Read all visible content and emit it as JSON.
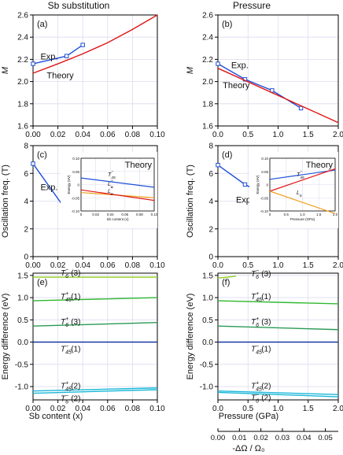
{
  "col_titles": [
    "Sb substitution",
    "Pressure"
  ],
  "colors": {
    "exp": "#1f4fd6",
    "theory": "#e01515",
    "grid": "#dcdcf0",
    "ltgreen": "#8ecf1e",
    "green": "#2fb82f",
    "dkgreen": "#2a9a55",
    "navy": "#0a2a9e",
    "cyan": "#1ab7d8",
    "orange": "#f0a020"
  },
  "x_ticks": {
    "sb": [
      "0.00",
      "0.02",
      "0.04",
      "0.06",
      "0.08",
      "0.10"
    ],
    "p": [
      "0.0",
      "0.5",
      "1.0",
      "1.5",
      "2.0"
    ],
    "omega": [
      "0.00",
      "0.01",
      "0.02",
      "0.03",
      "0.04",
      "0.05"
    ]
  },
  "x_labels": {
    "sb": "Sb content (x)",
    "p": "Pressure (GPa)",
    "omega": "-ΔΩ / Ω₀"
  },
  "chart_data": [
    {
      "panel": "(a)",
      "type": "line",
      "xlim": [
        0,
        0.1
      ],
      "ylim": [
        1.6,
        2.6
      ],
      "yticks": [
        "1.6",
        "1.8",
        "2.0",
        "2.2",
        "2.4",
        "2.6"
      ],
      "ylabel": "M",
      "series": [
        {
          "name": "Exp.",
          "markers": true,
          "x": [
            0,
            0.027,
            0.04
          ],
          "y": [
            2.16,
            2.23,
            2.33
          ]
        },
        {
          "name": "Theory",
          "x": [
            0,
            0.02,
            0.04,
            0.06,
            0.08,
            0.1
          ],
          "y": [
            2.075,
            2.16,
            2.25,
            2.35,
            2.47,
            2.6
          ]
        }
      ]
    },
    {
      "panel": "(b)",
      "type": "line",
      "xlim": [
        0,
        2
      ],
      "ylim": [
        1.6,
        2.6
      ],
      "yticks": [
        "1.6",
        "1.8",
        "2.0",
        "2.2",
        "2.4",
        "2.6"
      ],
      "ylabel": "M",
      "series": [
        {
          "name": "Exp.",
          "markers": true,
          "x": [
            0,
            0.45,
            0.9,
            1.38
          ],
          "y": [
            2.16,
            2.02,
            1.92,
            1.76
          ]
        },
        {
          "name": "Theory",
          "x": [
            0,
            2
          ],
          "y": [
            2.12,
            1.63
          ]
        }
      ]
    },
    {
      "panel": "(c)",
      "type": "line",
      "xlim": [
        0,
        0.1
      ],
      "ylim": [
        0,
        8
      ],
      "yticks": [
        "0",
        "2",
        "4",
        "6",
        "8"
      ],
      "ylabel": "Oscillation freq. (T)",
      "series": [
        {
          "name": "Exp.",
          "markers": true,
          "x": [
            0,
            0.027,
            0.04
          ],
          "y": [
            6.7,
            3.3,
            2.2
          ]
        }
      ],
      "inset": {
        "title": "Theory",
        "xlim": [
          0,
          0.1
        ],
        "ylim": [
          -0.1,
          0.1
        ],
        "xticks": [
          "0",
          "0.02",
          "0.04",
          "0.06",
          "0.08",
          "0.10"
        ],
        "yticks": [
          "0.10",
          "0.05",
          "0",
          "-0.05",
          "-0.10"
        ],
        "xlabel": "Sb content (x)",
        "ylabel": "Energy (eV)",
        "series": [
          {
            "name": "T45-",
            "x": [
              0,
              0.1
            ],
            "y": [
              0.025,
              -0.01
            ]
          },
          {
            "name": "L6+",
            "x": [
              0,
              0.1
            ],
            "y": [
              -0.03,
              -0.05
            ]
          },
          {
            "name": "L6-",
            "x": [
              0,
              0.1
            ],
            "y": [
              -0.02,
              -0.06
            ]
          }
        ]
      }
    },
    {
      "panel": "(d)",
      "type": "line",
      "xlim": [
        0,
        2
      ],
      "ylim": [
        0,
        8
      ],
      "yticks": [
        "0",
        "2",
        "4",
        "6",
        "8"
      ],
      "ylabel": "Oscillation freq. (T)",
      "series": [
        {
          "name": "Exp.",
          "markers": true,
          "x": [
            0,
            0.45,
            0.9,
            1.38
          ],
          "y": [
            6.6,
            5.2,
            4.2,
            2.5
          ]
        }
      ],
      "inset": {
        "title": "Theory",
        "xlim": [
          0,
          2
        ],
        "ylim": [
          -0.1,
          0.1
        ],
        "xticks": [
          "0",
          "0.5",
          "1.0",
          "1.5",
          "2.0"
        ],
        "yticks": [
          "0.10",
          "0.05",
          "0",
          "-0.05",
          "-0.10"
        ],
        "xlabel": "Pressure (GPa)",
        "ylabel": "Energy (eV)",
        "series": [
          {
            "name": "T45-",
            "x": [
              0,
              2
            ],
            "y": [
              0.02,
              0.055
            ]
          },
          {
            "name": "L6-",
            "x": [
              0,
              2
            ],
            "y": [
              -0.025,
              0.06
            ]
          },
          {
            "name": "L6+",
            "x": [
              0,
              2
            ],
            "y": [
              -0.025,
              -0.11
            ]
          }
        ]
      }
    },
    {
      "panel": "(e)",
      "type": "line",
      "xlim": [
        0,
        0.1
      ],
      "ylim": [
        -1.3,
        1.55
      ],
      "yticks": [
        "1.5",
        "1.0",
        "0.5",
        "0.0",
        "-0.5",
        "-1.0"
      ],
      "ylabel": "Energy difference (eV)",
      "series": [
        {
          "name": "T6-(3)",
          "x": [
            0,
            0.1
          ],
          "y": [
            1.46,
            1.46
          ]
        },
        {
          "name": "T45+(1)",
          "x": [
            0,
            0.1
          ],
          "y": [
            0.93,
            1.0
          ]
        },
        {
          "name": "T6+(3)",
          "x": [
            0,
            0.1
          ],
          "y": [
            0.36,
            0.44
          ]
        },
        {
          "name": "T45-(1)",
          "x": [
            0,
            0.1
          ],
          "y": [
            0.0,
            0.0
          ]
        },
        {
          "name": "T45+(2)",
          "x": [
            0,
            0.1
          ],
          "y": [
            -1.1,
            -1.03
          ]
        },
        {
          "name": "T6-(2)",
          "x": [
            0,
            0.1
          ],
          "y": [
            -1.15,
            -1.07
          ]
        }
      ]
    },
    {
      "panel": "(f)",
      "type": "line",
      "xlim": [
        0,
        2
      ],
      "ylim": [
        -1.3,
        1.55
      ],
      "yticks": [
        "1.5",
        "1.0",
        "0.5",
        "0.0",
        "-0.5",
        "-1.0"
      ],
      "ylabel": "Energy difference (eV)",
      "series": [
        {
          "name": "T6-(3)",
          "x": [
            0,
            0.3
          ],
          "y": [
            1.44,
            1.48
          ]
        },
        {
          "name": "T45+(1)",
          "x": [
            0,
            2
          ],
          "y": [
            0.93,
            0.86
          ]
        },
        {
          "name": "T6+(3)",
          "x": [
            0,
            2
          ],
          "y": [
            0.36,
            0.28
          ]
        },
        {
          "name": "T45-(1)",
          "x": [
            0,
            2
          ],
          "y": [
            0.0,
            0.0
          ]
        },
        {
          "name": "T45+(2)",
          "x": [
            0,
            2
          ],
          "y": [
            -1.1,
            -1.18
          ]
        },
        {
          "name": "T6-(2)",
          "x": [
            0,
            2
          ],
          "y": [
            -1.13,
            -1.23
          ]
        }
      ]
    }
  ]
}
